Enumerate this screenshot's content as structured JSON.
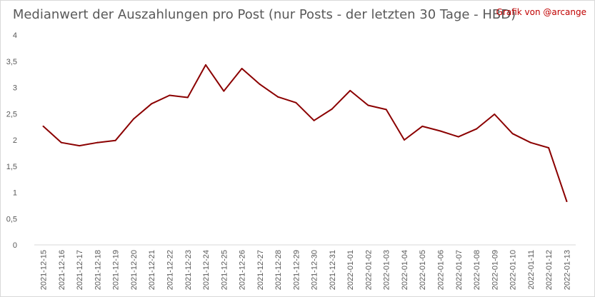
{
  "chart_data": {
    "type": "line",
    "title": "Medianwert der Auszahlungen pro Post (nur Posts - der letzten 30 Tage - HBD)",
    "credit": "Grafik von @arcange",
    "x": [
      "2021-12-15",
      "2021-12-16",
      "2021-12-17",
      "2021-12-18",
      "2021-12-19",
      "2021-12-20",
      "2021-12-21",
      "2021-12-22",
      "2021-12-23",
      "2021-12-24",
      "2021-12-25",
      "2021-12-26",
      "2021-12-27",
      "2021-12-28",
      "2021-12-29",
      "2021-12-30",
      "2021-12-31",
      "2022-01-01",
      "2022-01-02",
      "2022-01-03",
      "2022-01-04",
      "2022-01-05",
      "2022-01-06",
      "2022-01-07",
      "2022-01-08",
      "2022-01-09",
      "2022-01-10",
      "2022-01-11",
      "2022-01-12",
      "2022-01-13"
    ],
    "series": [
      {
        "values": [
          2.26,
          1.95,
          1.89,
          1.95,
          1.99,
          2.4,
          2.69,
          2.85,
          2.81,
          3.43,
          2.93,
          3.36,
          3.06,
          2.82,
          2.71,
          2.37,
          2.59,
          2.94,
          2.66,
          2.58,
          2.0,
          2.26,
          2.17,
          2.06,
          2.21,
          2.49,
          2.12,
          1.95,
          1.85,
          0.83
        ]
      }
    ],
    "ylim": [
      0,
      4
    ],
    "yticks": [
      "0",
      "0,5",
      "1",
      "1,5",
      "2",
      "2,5",
      "3",
      "3,5",
      "4"
    ],
    "line_color": "#8b0000",
    "grid": false,
    "xlabel": "",
    "ylabel": ""
  }
}
